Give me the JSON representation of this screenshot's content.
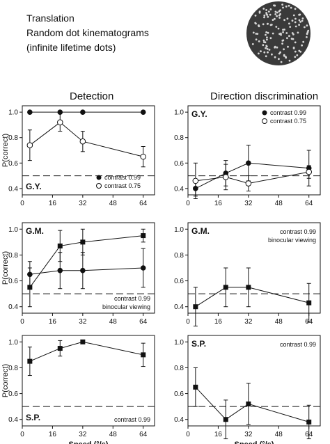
{
  "header": {
    "lines": [
      "Translation",
      "Random dot kinematograms",
      "(infinite lifetime dots)"
    ]
  },
  "columns": [
    {
      "title": "Detection"
    },
    {
      "title": "Direction discrimination"
    }
  ],
  "colors": {
    "ink": "#111111",
    "stimulus_bg": "#3a3a3a",
    "dot": "#d8d8d8"
  },
  "chart_data": [
    {
      "type": "line",
      "panel": "detection-gy",
      "subject": "G.Y.",
      "subject_position": "bottom-left",
      "ylabel": "P(correct)",
      "xlabel": "",
      "xlim": [
        0,
        70
      ],
      "ylim": [
        0.35,
        1.05
      ],
      "xticks": [
        "0",
        "16",
        "32",
        "48",
        "64"
      ],
      "yticks": [
        "0.4",
        "0.6",
        "0.8",
        "1.0"
      ],
      "chance": 0.5,
      "legend_position": "bottom-right",
      "annotation": "",
      "series": [
        {
          "name": "contrast 0.99",
          "marker": "filled-circle",
          "x": [
            4,
            20,
            32,
            64
          ],
          "y": [
            1.0,
            1.0,
            1.0,
            1.0
          ],
          "err": [
            0,
            0,
            0,
            0
          ]
        },
        {
          "name": "contrast 0.75",
          "marker": "open-circle",
          "x": [
            4,
            20,
            32,
            64
          ],
          "y": [
            0.74,
            0.92,
            0.77,
            0.65
          ],
          "err": [
            0.12,
            0.07,
            0.08,
            0.08
          ]
        }
      ]
    },
    {
      "type": "line",
      "panel": "direction-gy",
      "subject": "G.Y.",
      "subject_position": "top-left",
      "ylabel": "",
      "xlabel": "",
      "xlim": [
        0,
        70
      ],
      "ylim": [
        0.35,
        1.05
      ],
      "xticks": [
        "0",
        "16",
        "32",
        "48",
        "64"
      ],
      "yticks": [
        "0.4",
        "0.6",
        "0.8",
        "1.0"
      ],
      "chance": 0.5,
      "legend_position": "top-right",
      "annotation": "",
      "series": [
        {
          "name": "contrast 0.99",
          "marker": "filled-circle",
          "x": [
            4,
            20,
            32,
            64
          ],
          "y": [
            0.4,
            0.52,
            0.6,
            0.56
          ],
          "err": [
            0.06,
            0.1,
            0.14,
            0.14
          ]
        },
        {
          "name": "contrast 0.75",
          "marker": "open-circle",
          "x": [
            4,
            20,
            32,
            64
          ],
          "y": [
            0.46,
            0.49,
            0.44,
            0.53
          ],
          "err": [
            0.14,
            0.1,
            0.06,
            0.05
          ]
        }
      ]
    },
    {
      "type": "line",
      "panel": "detection-gm",
      "subject": "G.M.",
      "subject_position": "top-left",
      "ylabel": "P(correct)",
      "xlabel": "",
      "xlim": [
        0,
        70
      ],
      "ylim": [
        0.35,
        1.05
      ],
      "xticks": [
        "0",
        "16",
        "32",
        "48",
        "64"
      ],
      "yticks": [
        "0.4",
        "0.6",
        "0.8",
        "1.0"
      ],
      "chance": 0.5,
      "legend_position": "bottom-right",
      "annotation": "contrast 0.99|binocular viewing",
      "series": [
        {
          "name": "",
          "marker": "filled-circle",
          "x": [
            4,
            20,
            32,
            64
          ],
          "y": [
            0.65,
            0.68,
            0.68,
            0.7
          ],
          "err": [
            0.1,
            0.14,
            0.14,
            0.15
          ]
        },
        {
          "name": "",
          "marker": "filled-square",
          "x": [
            4,
            20,
            32,
            64
          ],
          "y": [
            0.55,
            0.87,
            0.9,
            0.95
          ],
          "err": [
            0.15,
            0.12,
            0.1,
            0.05
          ]
        }
      ]
    },
    {
      "type": "line",
      "panel": "direction-gm",
      "subject": "G.M.",
      "subject_position": "top-left",
      "ylabel": "",
      "xlabel": "",
      "xlim": [
        0,
        70
      ],
      "ylim": [
        0.35,
        1.05
      ],
      "xticks": [
        "0",
        "16",
        "32",
        "48",
        "64"
      ],
      "yticks": [
        "0.4",
        "0.6",
        "0.8",
        "1.0"
      ],
      "chance": 0.5,
      "legend_position": "top-right",
      "annotation": "contrast 0.99|binocular viewing",
      "series": [
        {
          "name": "",
          "marker": "filled-square",
          "x": [
            4,
            20,
            32,
            64
          ],
          "y": [
            0.4,
            0.55,
            0.55,
            0.43
          ],
          "err": [
            0.15,
            0.15,
            0.15,
            0.15
          ]
        }
      ]
    },
    {
      "type": "line",
      "panel": "detection-sp",
      "subject": "S.P.",
      "subject_position": "bottom-left",
      "ylabel": "P(correct)",
      "xlabel": "Speed (°/s)",
      "xlim": [
        0,
        70
      ],
      "ylim": [
        0.35,
        1.05
      ],
      "xticks": [
        "0",
        "16",
        "32",
        "48",
        "64"
      ],
      "yticks": [
        "0.4",
        "0.6",
        "0.8",
        "1.0"
      ],
      "chance": 0.5,
      "legend_position": "bottom-right",
      "annotation": "contrast 0.99",
      "series": [
        {
          "name": "",
          "marker": "filled-square",
          "x": [
            4,
            20,
            32,
            64
          ],
          "y": [
            0.85,
            0.95,
            1.0,
            0.9
          ],
          "err": [
            0.11,
            0.06,
            0,
            0.09
          ]
        }
      ]
    },
    {
      "type": "line",
      "panel": "direction-sp",
      "subject": "S.P.",
      "subject_position": "top-left",
      "ylabel": "",
      "xlabel": "Speed (°/s)",
      "xlim": [
        0,
        70
      ],
      "ylim": [
        0.35,
        1.05
      ],
      "xticks": [
        "0",
        "16",
        "32",
        "48",
        "64"
      ],
      "yticks": [
        "0.4",
        "0.6",
        "0.8",
        "1.0"
      ],
      "chance": 0.5,
      "legend_position": "top-right",
      "annotation": "contrast 0.99",
      "series": [
        {
          "name": "",
          "marker": "filled-square",
          "x": [
            4,
            20,
            32,
            64
          ],
          "y": [
            0.65,
            0.4,
            0.52,
            0.38
          ],
          "err": [
            0.15,
            0.15,
            0.16,
            0.13
          ]
        }
      ]
    }
  ]
}
